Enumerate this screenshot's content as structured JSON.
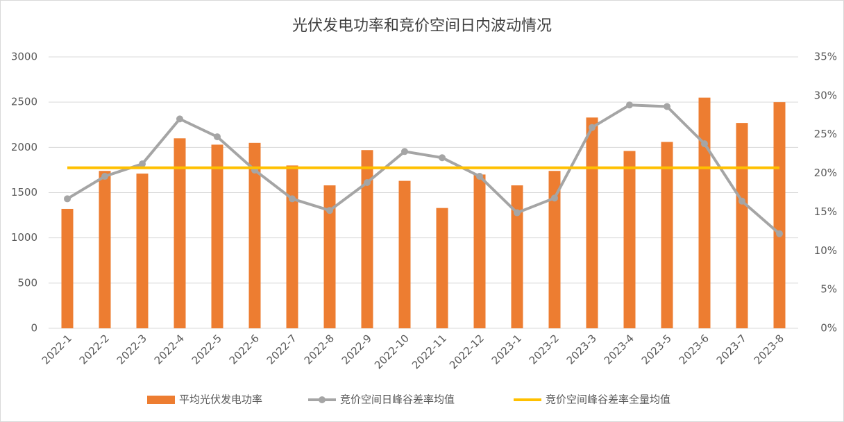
{
  "chart_data": {
    "type": "bar-line",
    "title": "光伏发电功率和竞价空间日内波动情况",
    "categories": [
      "2022-1",
      "2022-2",
      "2022-3",
      "2022-4",
      "2022-5",
      "2022-6",
      "2022-7",
      "2022-8",
      "2022-9",
      "2022-10",
      "2022-11",
      "2022-12",
      "2023-1",
      "2023-2",
      "2023-3",
      "2023-4",
      "2023-5",
      "2023-6",
      "2023-7",
      "2023-8"
    ],
    "series": [
      {
        "name": "平均光伏发电功率",
        "type": "bar",
        "color": "#ed7d31",
        "axis": "y",
        "values": [
          1320,
          1740,
          1710,
          2100,
          2030,
          2050,
          1800,
          1580,
          1970,
          1630,
          1330,
          1700,
          1580,
          1740,
          2330,
          1960,
          2060,
          2550,
          2270,
          2500
        ]
      },
      {
        "name": "竞价空间日峰谷差率均值",
        "type": "line",
        "marker": true,
        "color": "#a5a5a5",
        "axis": "y2",
        "values": [
          16.7,
          19.6,
          21.2,
          27.0,
          24.7,
          20.4,
          16.7,
          15.2,
          18.8,
          22.8,
          22.0,
          19.6,
          14.9,
          16.8,
          25.9,
          28.8,
          28.6,
          23.8,
          16.4,
          12.2
        ]
      },
      {
        "name": "竞价空间峰谷差率全量均值",
        "type": "line",
        "marker": false,
        "color": "#ffc000",
        "axis": "y2",
        "values": [
          20.7,
          20.7,
          20.7,
          20.7,
          20.7,
          20.7,
          20.7,
          20.7,
          20.7,
          20.7,
          20.7,
          20.7,
          20.7,
          20.7,
          20.7,
          20.7,
          20.7,
          20.7,
          20.7,
          20.7
        ]
      }
    ],
    "ylim": [
      0,
      3000
    ],
    "yticks": [
      0,
      500,
      1000,
      1500,
      2000,
      2500,
      3000
    ],
    "y2lim": [
      0,
      35
    ],
    "y2ticks": [
      {
        "value": 0,
        "label": "0%"
      },
      {
        "value": 5,
        "label": "5%"
      },
      {
        "value": 10,
        "label": "10%"
      },
      {
        "value": 15,
        "label": "15%"
      },
      {
        "value": 20,
        "label": "20%"
      },
      {
        "value": 25,
        "label": "25%"
      },
      {
        "value": 30,
        "label": "30%"
      },
      {
        "value": 35,
        "label": "35%"
      }
    ],
    "grid": true,
    "legend": "bottom"
  }
}
